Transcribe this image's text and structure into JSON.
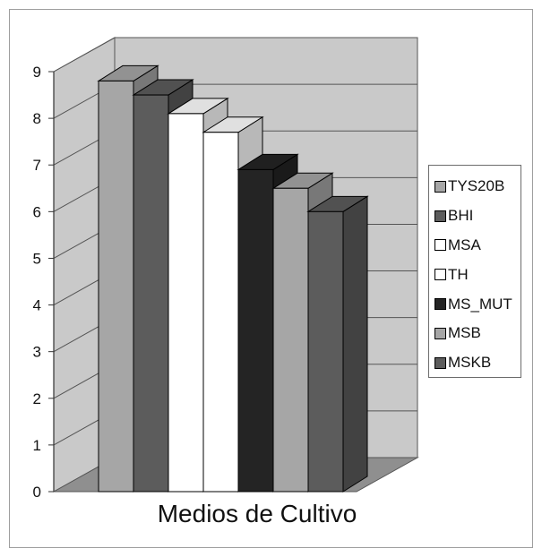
{
  "chart_data": {
    "type": "bar",
    "x_label": "Medios de Cultivo",
    "y_ticks": [
      "0",
      "1",
      "2",
      "3",
      "4",
      "5",
      "6",
      "7",
      "8",
      "9"
    ],
    "ylim": [
      0,
      9
    ],
    "grid": true,
    "three_d": true,
    "legend_position": "right",
    "series": [
      {
        "name": "TYS20B",
        "value": 8.8,
        "color": "#a6a6a6"
      },
      {
        "name": "BHI",
        "value": 8.5,
        "color": "#5c5c5c"
      },
      {
        "name": "MSA",
        "value": 8.1,
        "color": "#ffffff"
      },
      {
        "name": "TH",
        "value": 7.7,
        "color": "#ffffff"
      },
      {
        "name": "MS_MUT",
        "value": 6.9,
        "color": "#242424"
      },
      {
        "name": "MSB",
        "value": 6.5,
        "color": "#a6a6a6"
      },
      {
        "name": "MSKB",
        "value": 6.0,
        "color": "#5c5c5c"
      }
    ]
  }
}
